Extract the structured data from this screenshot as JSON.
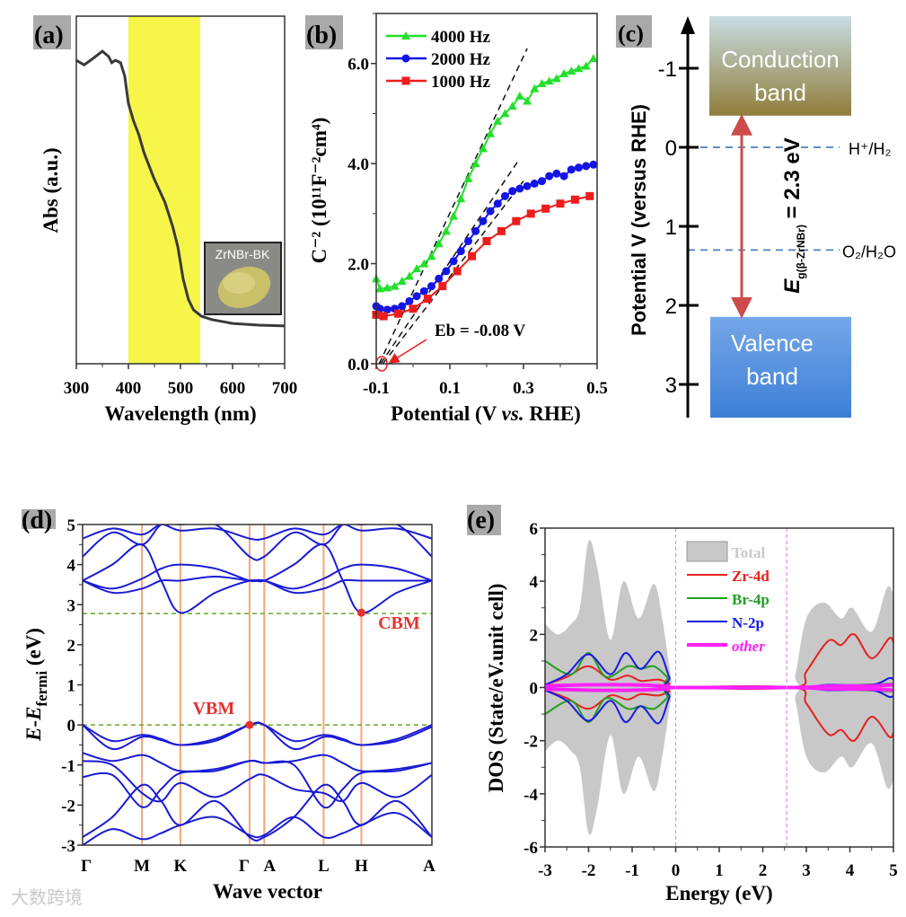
{
  "panel_labels": [
    "(a)",
    "(b)",
    "(c)",
    "(d)",
    "(e)"
  ],
  "watermark": "大数跨境",
  "chart_data": [
    {
      "id": "a",
      "type": "line",
      "xlabel": "Wavelength (nm)",
      "ylabel": "Abs (a.u.)",
      "xlim": [
        300,
        700
      ],
      "ylim": [
        0,
        1
      ],
      "xticks": [
        "300",
        "400",
        "500",
        "600",
        "700"
      ],
      "highlight_band": {
        "from": 400,
        "to": 538,
        "color": "#f7f54a"
      },
      "inset_label": "ZrNBr-BK",
      "series": [
        {
          "name": "Abs",
          "color": "#3a3a3a",
          "x": [
            300,
            315,
            330,
            350,
            362,
            368,
            375,
            385,
            393,
            400,
            410,
            420,
            430,
            450,
            470,
            485,
            495,
            505,
            515,
            525,
            540,
            560,
            600,
            650,
            700
          ],
          "y": [
            0.873,
            0.86,
            0.876,
            0.899,
            0.884,
            0.866,
            0.873,
            0.866,
            0.827,
            0.749,
            0.698,
            0.659,
            0.607,
            0.53,
            0.465,
            0.395,
            0.336,
            0.245,
            0.186,
            0.155,
            0.137,
            0.127,
            0.116,
            0.111,
            0.109
          ]
        }
      ]
    },
    {
      "id": "b",
      "type": "line",
      "xlabel_parts": [
        "Potential (V ",
        "vs.",
        " RHE)"
      ],
      "ylabel": "C⁻² (10¹¹F⁻²cm⁴)",
      "xlim": [
        -0.1,
        0.5
      ],
      "ylim": [
        0,
        7
      ],
      "xticks": [
        "-0.1",
        "0.1",
        "0.3",
        "0.5"
      ],
      "yticks": [
        "0.0",
        "2.0",
        "4.0",
        "6.0"
      ],
      "series": [
        {
          "name": "4000 Hz",
          "color": "#22e02a",
          "marker": "triangle",
          "x": [
            -0.1,
            -0.09,
            -0.07,
            -0.05,
            -0.03,
            -0.01,
            0.01,
            0.03,
            0.05,
            0.07,
            0.09,
            0.11,
            0.13,
            0.15,
            0.17,
            0.19,
            0.21,
            0.23,
            0.25,
            0.27,
            0.29,
            0.31,
            0.33,
            0.35,
            0.37,
            0.39,
            0.41,
            0.43,
            0.45,
            0.47,
            0.49
          ],
          "y": [
            1.7,
            1.5,
            1.52,
            1.55,
            1.65,
            1.75,
            1.9,
            2.0,
            2.15,
            2.4,
            2.65,
            2.95,
            3.3,
            3.7,
            4.0,
            4.3,
            4.6,
            4.85,
            5.0,
            5.15,
            5.35,
            5.25,
            5.5,
            5.6,
            5.65,
            5.7,
            5.8,
            5.85,
            5.9,
            5.95,
            6.1
          ]
        },
        {
          "name": "2000 Hz",
          "color": "#1414e6",
          "marker": "circle",
          "x": [
            -0.1,
            -0.09,
            -0.07,
            -0.05,
            -0.03,
            -0.01,
            0.01,
            0.03,
            0.05,
            0.07,
            0.09,
            0.11,
            0.13,
            0.15,
            0.17,
            0.19,
            0.21,
            0.23,
            0.25,
            0.27,
            0.29,
            0.31,
            0.33,
            0.35,
            0.37,
            0.39,
            0.41,
            0.43,
            0.45,
            0.47,
            0.49
          ],
          "y": [
            1.15,
            1.1,
            1.08,
            1.1,
            1.15,
            1.25,
            1.35,
            1.45,
            1.55,
            1.7,
            1.85,
            2.05,
            2.25,
            2.45,
            2.65,
            2.85,
            3.05,
            3.2,
            3.35,
            3.45,
            3.5,
            3.55,
            3.6,
            3.65,
            3.75,
            3.8,
            3.75,
            3.88,
            3.92,
            3.95,
            3.98
          ]
        },
        {
          "name": "1000 Hz",
          "color": "#ee1c1c",
          "marker": "square",
          "x": [
            -0.1,
            -0.08,
            -0.04,
            0.0,
            0.04,
            0.08,
            0.12,
            0.16,
            0.2,
            0.24,
            0.28,
            0.32,
            0.36,
            0.4,
            0.44,
            0.48
          ],
          "y": [
            0.98,
            0.95,
            1.0,
            1.1,
            1.3,
            1.55,
            1.85,
            2.15,
            2.45,
            2.65,
            2.85,
            3.0,
            3.1,
            3.2,
            3.28,
            3.35
          ]
        }
      ],
      "fit_lines": [
        {
          "from": [
            -0.092,
            0
          ],
          "to": [
            0.31,
            6.3
          ]
        },
        {
          "from": [
            -0.088,
            0
          ],
          "to": [
            0.29,
            4.1
          ]
        },
        {
          "from": [
            -0.082,
            0
          ],
          "to": [
            0.3,
            3.65
          ]
        }
      ],
      "annotation": {
        "text": "Eb = -0.08 V",
        "x": -0.09,
        "y": 0,
        "color": "#ee1c1c"
      }
    },
    {
      "id": "c",
      "type": "diagram",
      "ylabel": "Potential V (versus RHE)",
      "ylim": [
        -1.7,
        3.4
      ],
      "yticks": [
        "-1",
        "0",
        "1",
        "2",
        "3"
      ],
      "conduction_band": {
        "label_line1": "Conduction",
        "label_line2": "band",
        "edge": -0.4,
        "color_top": "#c8dde3",
        "color_bottom": "#8f7d3a"
      },
      "valence_band": {
        "label_line1": "Valence",
        "label_line2": "band",
        "edge": 2.1,
        "color_top": "#75a7e8",
        "color_bottom": "#3d7fd6"
      },
      "levels": [
        {
          "label": "H⁺/H₂",
          "value": 0
        },
        {
          "label": "O₂/H₂O",
          "value": 1.3
        }
      ],
      "bandgap": {
        "symbol": "E",
        "subscript": "g(β-ZrNBr)",
        "text": " = 2.3 eV",
        "color": "#cc4b4b"
      }
    },
    {
      "id": "d",
      "type": "line",
      "xlabel": "Wave vector",
      "ylabel_parts": [
        "E",
        "-",
        "E",
        "fermi",
        " (eV)"
      ],
      "ylim": [
        -3,
        5
      ],
      "yticks": [
        "-3",
        "-2",
        "-1",
        "0",
        "1",
        "2",
        "3",
        "4",
        "5"
      ],
      "kpoints": [
        {
          "label": "Γ",
          "pos": 0
        },
        {
          "label": "M",
          "pos": 0.17
        },
        {
          "label": "K",
          "pos": 0.28
        },
        {
          "label": "Γ",
          "pos": 0.478
        },
        {
          "label": "A",
          "pos": 0.52
        },
        {
          "label": "L",
          "pos": 0.69
        },
        {
          "label": "H",
          "pos": 0.798
        },
        {
          "label": "A",
          "pos": 1.0
        }
      ],
      "k_samples": [
        0,
        0.085,
        0.17,
        0.225,
        0.28,
        0.38,
        0.478,
        0.52,
        0.605,
        0.69,
        0.745,
        0.798,
        0.9,
        1.0
      ],
      "bands": [
        [
          0,
          -0.4,
          -0.25,
          -0.35,
          -0.5,
          -0.35,
          0,
          0,
          -0.4,
          -0.25,
          -0.35,
          -0.5,
          -0.35,
          0
        ],
        [
          0,
          -0.6,
          -0.3,
          -0.38,
          -0.5,
          -0.4,
          0,
          0,
          -0.6,
          -0.3,
          -0.38,
          -0.5,
          -0.4,
          -0.05
        ],
        [
          -0.7,
          -0.9,
          -0.75,
          -0.95,
          -1.15,
          -1.1,
          -0.9,
          -0.95,
          -0.9,
          -0.75,
          -0.95,
          -1.15,
          -1.1,
          -0.95
        ],
        [
          -0.9,
          -1.0,
          -1.7,
          -1.9,
          -1.45,
          -1.8,
          -1.35,
          -1.25,
          -1.6,
          -1.7,
          -1.9,
          -1.45,
          -1.8,
          -1.25
        ],
        [
          -1.3,
          -1.25,
          -2.05,
          -1.6,
          -1.2,
          -1.15,
          -0.9,
          -0.95,
          -1.0,
          -2.05,
          -1.6,
          -1.2,
          -1.15,
          -0.95
        ],
        [
          -2.8,
          -2.3,
          -1.5,
          -1.9,
          -2.5,
          -1.9,
          -2.8,
          -2.8,
          -2.3,
          -1.5,
          -1.9,
          -2.5,
          -1.9,
          -2.8
        ],
        [
          -3,
          -2.6,
          -2.85,
          -2.7,
          -2.5,
          -2.3,
          -2.75,
          -2.75,
          -2.3,
          -2.8,
          -2.7,
          -2.5,
          -2.2,
          -2.8
        ],
        [
          3.6,
          3.3,
          3.4,
          3.6,
          3.6,
          3.7,
          3.6,
          3.6,
          3.3,
          3.4,
          3.6,
          3.6,
          3.6,
          3.6
        ],
        [
          3.6,
          3.4,
          3.65,
          3.9,
          4.0,
          3.9,
          3.6,
          3.6,
          3.4,
          3.65,
          3.9,
          4.0,
          3.9,
          3.6
        ],
        [
          3.6,
          4.0,
          4.5,
          3.6,
          2.8,
          3.3,
          3.6,
          3.6,
          4.0,
          4.5,
          3.6,
          2.8,
          3.3,
          3.6
        ],
        [
          4.2,
          4.8,
          4.5,
          5.0,
          5.0,
          5.0,
          4.2,
          4.2,
          4.8,
          4.5,
          5.0,
          5.0,
          5.0,
          4.2
        ],
        [
          4.65,
          4.9,
          4.75,
          5.0,
          4.85,
          4.9,
          4.65,
          4.65,
          4.9,
          4.75,
          5.0,
          4.85,
          4.9,
          4.65
        ]
      ],
      "reference_lines": [
        0,
        2.78
      ],
      "markers": [
        {
          "label": "VBM",
          "k": 0.478,
          "E": 0
        },
        {
          "label": "CBM",
          "k": 0.798,
          "E": 2.8
        }
      ],
      "band_color": "#1a1ad6",
      "kline_color": "#f0a878",
      "marker_color": "#e83030"
    },
    {
      "id": "e",
      "type": "area",
      "xlabel": "Energy (eV)",
      "ylabel": "DOS (State/eV.unit cell)",
      "xlim": [
        -3,
        5
      ],
      "ylim": [
        -6,
        6
      ],
      "xticks": [
        "-3",
        "-2",
        "-1",
        "0",
        "1",
        "2",
        "3",
        "4",
        "5"
      ],
      "yticks": [
        "-6",
        "-4",
        "-2",
        "0",
        "2",
        "4",
        "6"
      ],
      "legend": "top-center",
      "vlines": [
        0,
        2.55
      ],
      "series": [
        {
          "name": "Total",
          "color": "#c8c8c8",
          "kind": "fill",
          "x": [
            -3,
            -2.7,
            -2.4,
            -2.2,
            -2.0,
            -1.8,
            -1.5,
            -1.2,
            -0.85,
            -0.5,
            -0.3,
            -0.1,
            0,
            2.6,
            2.75,
            3.0,
            3.4,
            3.8,
            4.05,
            4.5,
            4.85,
            5.0
          ],
          "y": [
            2.4,
            2.0,
            2.4,
            3.0,
            5.5,
            4.5,
            1.8,
            4.0,
            2.6,
            3.9,
            2.5,
            0.3,
            0,
            0,
            0.5,
            2.6,
            3.2,
            2.6,
            3.0,
            2.1,
            3.75,
            3.5
          ]
        },
        {
          "name": "Zr-4d",
          "color": "#e82020",
          "kind": "line",
          "x": [
            -3,
            -2.5,
            -2.0,
            -1.5,
            -1.1,
            -0.8,
            -0.4,
            -0.15,
            0,
            2.7,
            3.0,
            3.5,
            3.8,
            4.1,
            4.5,
            4.9,
            5.0
          ],
          "y": [
            0.1,
            0.4,
            0.8,
            0.3,
            0.45,
            0.25,
            0.3,
            0.15,
            0,
            0,
            0.6,
            1.75,
            1.6,
            2.0,
            1.1,
            1.85,
            1.7
          ]
        },
        {
          "name": "Br-4p",
          "color": "#20a020",
          "kind": "line",
          "x": [
            -3,
            -2.4,
            -2.0,
            -1.6,
            -1.1,
            -0.8,
            -0.5,
            -0.2,
            0,
            2.7,
            3.5,
            5.0
          ],
          "y": [
            1.0,
            0.5,
            1.3,
            0.4,
            0.8,
            0.7,
            0.8,
            0.4,
            0,
            0,
            0.05,
            0.15
          ]
        },
        {
          "name": "N-2p",
          "color": "#1a1ae6",
          "kind": "line",
          "x": [
            -3,
            -2.5,
            -2.0,
            -1.5,
            -1.15,
            -0.8,
            -0.4,
            -0.15,
            0,
            2.7,
            3.5,
            4.5,
            4.9,
            5.0
          ],
          "y": [
            0.1,
            0.5,
            1.25,
            0.5,
            1.3,
            0.7,
            1.35,
            0.4,
            0,
            0,
            0.1,
            0.1,
            0.35,
            0.3
          ]
        },
        {
          "name": "other",
          "color": "#ff20ff",
          "kind": "line",
          "x": [
            -3,
            -2,
            -1,
            -0.2,
            0,
            2.7,
            3.5,
            4.5,
            5.0
          ],
          "y": [
            0.06,
            0.1,
            0.1,
            0.05,
            0,
            0,
            0.05,
            0.06,
            0.1
          ]
        }
      ]
    }
  ]
}
